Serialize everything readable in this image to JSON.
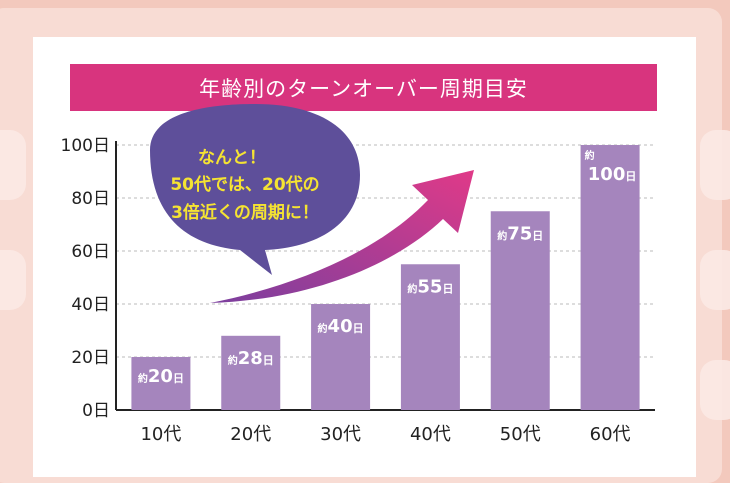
{
  "chart_data": {
    "type": "bar",
    "title": "年齢別のターンオーバー周期目安",
    "categories": [
      "10代",
      "20代",
      "30代",
      "40代",
      "50代",
      "60代"
    ],
    "values": [
      20,
      28,
      40,
      55,
      75,
      100
    ],
    "ylim": [
      0,
      100
    ],
    "yticks": [
      "0日",
      "20日",
      "40日",
      "60日",
      "80日",
      "100日"
    ],
    "ytick_values": [
      0,
      20,
      40,
      60,
      80,
      100
    ],
    "value_prefix": "約",
    "value_unit": "日",
    "grid": true,
    "colors": {
      "bar": "#a585bd",
      "banner": "#d8347e",
      "bubble": "#5e4f9a",
      "bubble_text": "#f5e332",
      "arrow_start": "#7b3f9e",
      "arrow_end": "#e03a88"
    },
    "annotation": [
      "なんと！",
      "50代では、20代の",
      "3倍近くの周期に！"
    ]
  }
}
